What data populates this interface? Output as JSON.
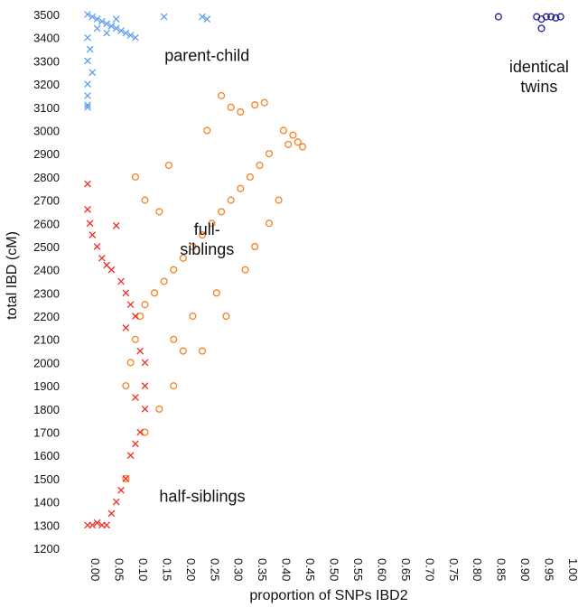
{
  "chart_data": {
    "type": "scatter",
    "title": "",
    "xlabel": "proportion of SNPs IBD2",
    "ylabel": "total IBD (cM)",
    "xlim": [
      0.0,
      1.0
    ],
    "ylim": [
      1200,
      3500
    ],
    "x_ticks": [
      "0.00",
      "0.05",
      "0.10",
      "0.15",
      "0.20",
      "0.25",
      "0.30",
      "0.35",
      "0.40",
      "0.45",
      "0.50",
      "0.55",
      "0.60",
      "0.65",
      "0.70",
      "0.75",
      "0.80",
      "0.85",
      "0.90",
      "0.95",
      "1.00"
    ],
    "y_ticks": [
      "1200",
      "1300",
      "1400",
      "1500",
      "1600",
      "1700",
      "1800",
      "1900",
      "2000",
      "2100",
      "2200",
      "2300",
      "2400",
      "2500",
      "2600",
      "2700",
      "2800",
      "2900",
      "3000",
      "3100",
      "3200",
      "3300",
      "3400",
      "3500"
    ],
    "grid": false,
    "legend": "none",
    "colors": {
      "parent_child": "#5b9ef0",
      "full_siblings": "#f5811f",
      "half_siblings": "#f22b24",
      "identical_twins": "#1f1d8a"
    },
    "series": [
      {
        "key": "parent_child",
        "marker": "x",
        "color": "#5b9ef0",
        "points": [
          [
            0.0,
            3500
          ],
          [
            0.01,
            3490
          ],
          [
            0.02,
            3480
          ],
          [
            0.03,
            3470
          ],
          [
            0.04,
            3460
          ],
          [
            0.05,
            3450
          ],
          [
            0.06,
            3440
          ],
          [
            0.07,
            3430
          ],
          [
            0.08,
            3420
          ],
          [
            0.09,
            3410
          ],
          [
            0.1,
            3400
          ],
          [
            0.0,
            3400
          ],
          [
            0.005,
            3350
          ],
          [
            0.0,
            3300
          ],
          [
            0.01,
            3250
          ],
          [
            0.0,
            3200
          ],
          [
            0.0,
            3150
          ],
          [
            0.0,
            3110
          ],
          [
            0.0,
            3100
          ],
          [
            0.16,
            3490
          ],
          [
            0.24,
            3490
          ],
          [
            0.25,
            3480
          ],
          [
            0.06,
            3480
          ],
          [
            0.04,
            3420
          ],
          [
            0.02,
            3440
          ]
        ]
      },
      {
        "key": "full_siblings",
        "marker": "o",
        "color": "#f5811f",
        "points": [
          [
            0.28,
            3150
          ],
          [
            0.3,
            3100
          ],
          [
            0.32,
            3080
          ],
          [
            0.35,
            3110
          ],
          [
            0.37,
            3120
          ],
          [
            0.41,
            3000
          ],
          [
            0.43,
            2980
          ],
          [
            0.44,
            2950
          ],
          [
            0.45,
            2930
          ],
          [
            0.42,
            2940
          ],
          [
            0.38,
            2900
          ],
          [
            0.36,
            2850
          ],
          [
            0.34,
            2800
          ],
          [
            0.32,
            2750
          ],
          [
            0.3,
            2700
          ],
          [
            0.28,
            2650
          ],
          [
            0.26,
            2600
          ],
          [
            0.24,
            2550
          ],
          [
            0.22,
            2500
          ],
          [
            0.2,
            2450
          ],
          [
            0.18,
            2400
          ],
          [
            0.16,
            2350
          ],
          [
            0.14,
            2300
          ],
          [
            0.12,
            2250
          ],
          [
            0.11,
            2200
          ],
          [
            0.1,
            2100
          ],
          [
            0.09,
            2000
          ],
          [
            0.08,
            1900
          ],
          [
            0.1,
            2800
          ],
          [
            0.12,
            2700
          ],
          [
            0.15,
            2650
          ],
          [
            0.17,
            2850
          ],
          [
            0.25,
            3000
          ],
          [
            0.35,
            2500
          ],
          [
            0.38,
            2600
          ],
          [
            0.4,
            2700
          ],
          [
            0.33,
            2400
          ],
          [
            0.27,
            2300
          ],
          [
            0.22,
            2200
          ],
          [
            0.18,
            2100
          ],
          [
            0.2,
            2050
          ],
          [
            0.15,
            1800
          ],
          [
            0.12,
            1700
          ],
          [
            0.18,
            1900
          ],
          [
            0.24,
            2050
          ],
          [
            0.29,
            2200
          ],
          [
            0.08,
            1500
          ]
        ]
      },
      {
        "key": "half_siblings",
        "marker": "x",
        "color": "#f22b24",
        "points": [
          [
            0.0,
            2770
          ],
          [
            0.0,
            2660
          ],
          [
            0.005,
            2600
          ],
          [
            0.01,
            2550
          ],
          [
            0.02,
            2500
          ],
          [
            0.03,
            2450
          ],
          [
            0.05,
            2400
          ],
          [
            0.07,
            2350
          ],
          [
            0.08,
            2300
          ],
          [
            0.09,
            2250
          ],
          [
            0.1,
            2200
          ],
          [
            0.06,
            2590
          ],
          [
            0.04,
            2420
          ],
          [
            0.08,
            2150
          ],
          [
            0.11,
            2050
          ],
          [
            0.12,
            2000
          ],
          [
            0.12,
            1900
          ],
          [
            0.1,
            1850
          ],
          [
            0.12,
            1800
          ],
          [
            0.11,
            1700
          ],
          [
            0.1,
            1650
          ],
          [
            0.09,
            1600
          ],
          [
            0.08,
            1500
          ],
          [
            0.07,
            1450
          ],
          [
            0.06,
            1400
          ],
          [
            0.05,
            1350
          ],
          [
            0.04,
            1300
          ],
          [
            0.03,
            1300
          ],
          [
            0.02,
            1310
          ],
          [
            0.01,
            1300
          ],
          [
            0.0,
            1300
          ]
        ]
      },
      {
        "key": "identical_twins",
        "marker": "o",
        "color": "#1f1d8a",
        "points": [
          [
            0.86,
            3490
          ],
          [
            0.94,
            3490
          ],
          [
            0.95,
            3480
          ],
          [
            0.96,
            3490
          ],
          [
            0.97,
            3490
          ],
          [
            0.98,
            3485
          ],
          [
            0.99,
            3490
          ],
          [
            0.95,
            3440
          ]
        ]
      }
    ],
    "annotations": [
      {
        "key": "parent_child",
        "lines": [
          "parent-child"
        ],
        "x": 0.25,
        "y": 3300
      },
      {
        "key": "full_siblings",
        "lines": [
          "full-",
          "siblings"
        ],
        "x": 0.25,
        "y": 2550
      },
      {
        "key": "half_siblings",
        "lines": [
          "half-siblings"
        ],
        "x": 0.24,
        "y": 1400
      },
      {
        "key": "identical_twins",
        "lines": [
          "identical",
          "twins"
        ],
        "x": 0.945,
        "y": 3250
      }
    ]
  }
}
